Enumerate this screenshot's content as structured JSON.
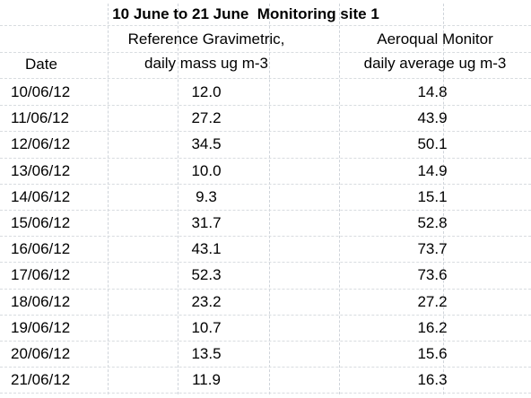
{
  "title": "10 June to 21 June  Monitoring site 1",
  "chart_data": {
    "type": "table",
    "title": "10 June to 21 June  Monitoring site 1",
    "columns": [
      {
        "key": "date",
        "header_lines": [
          "Date"
        ]
      },
      {
        "key": "reference",
        "header_lines": [
          "Reference Gravimetric,",
          "daily mass ug m-3"
        ]
      },
      {
        "key": "aeroqual",
        "header_lines": [
          "Aeroqual Monitor",
          "daily average ug m-3"
        ]
      }
    ],
    "rows": [
      {
        "date": "10/06/12",
        "reference": "12.0",
        "aeroqual": "14.8"
      },
      {
        "date": "11/06/12",
        "reference": "27.2",
        "aeroqual": "43.9"
      },
      {
        "date": "12/06/12",
        "reference": "34.5",
        "aeroqual": "50.1"
      },
      {
        "date": "13/06/12",
        "reference": "10.0",
        "aeroqual": "14.9"
      },
      {
        "date": "14/06/12",
        "reference": "9.3",
        "aeroqual": "15.1"
      },
      {
        "date": "15/06/12",
        "reference": "31.7",
        "aeroqual": "52.8"
      },
      {
        "date": "16/06/12",
        "reference": "43.1",
        "aeroqual": "73.7"
      },
      {
        "date": "17/06/12",
        "reference": "52.3",
        "aeroqual": "73.6"
      },
      {
        "date": "18/06/12",
        "reference": "23.2",
        "aeroqual": "27.2"
      },
      {
        "date": "19/06/12",
        "reference": "10.7",
        "aeroqual": "16.2"
      },
      {
        "date": "20/06/12",
        "reference": "13.5",
        "aeroqual": "15.6"
      },
      {
        "date": "21/06/12",
        "reference": "11.9",
        "aeroqual": "16.3"
      }
    ]
  }
}
